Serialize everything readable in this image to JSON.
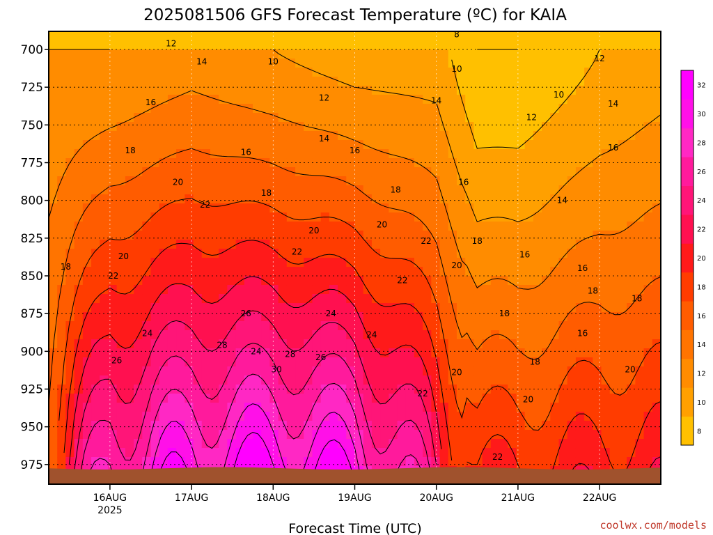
{
  "chart_data": {
    "type": "heatmap",
    "title": "2025081506 GFS Forecast Temperature (ºC) for KAIA",
    "xlabel": "Forecast Time (UTC)",
    "ylabel": "",
    "y_ticks": [
      "700",
      "725",
      "750",
      "775",
      "800",
      "825",
      "850",
      "875",
      "900",
      "925",
      "950",
      "975"
    ],
    "y_tick_values": [
      700,
      725,
      750,
      775,
      800,
      825,
      850,
      875,
      900,
      925,
      950,
      975
    ],
    "ylim": [
      688,
      988
    ],
    "y_inverted": true,
    "x_ticks": [
      {
        "label": "16AUG",
        "sublabel": "2025",
        "hour": 18
      },
      {
        "label": "17AUG",
        "sublabel": "",
        "hour": 42
      },
      {
        "label": "18AUG",
        "sublabel": "",
        "hour": 66
      },
      {
        "label": "19AUG",
        "sublabel": "",
        "hour": 90
      },
      {
        "label": "20AUG",
        "sublabel": "",
        "hour": 114
      },
      {
        "label": "21AUG",
        "sublabel": "",
        "hour": 138
      },
      {
        "label": "22AUG",
        "sublabel": "",
        "hour": 162
      }
    ],
    "xlim": [
      0,
      180
    ],
    "grid": true,
    "colorbar": {
      "levels": [
        8,
        10,
        12,
        14,
        16,
        18,
        20,
        22,
        24,
        26,
        28,
        30,
        32
      ],
      "labels": [
        "8",
        "10",
        "12",
        "14",
        "16",
        "18",
        "20",
        "22",
        "24",
        "26",
        "28",
        "30",
        "32"
      ],
      "colors": [
        "#ffc000",
        "#ffa000",
        "#ff8c00",
        "#ff7400",
        "#ff5c00",
        "#ff3c00",
        "#ff1a1a",
        "#ff1050",
        "#ff1578",
        "#ff1a9c",
        "#ff28c4",
        "#ff10e8",
        "#ff00ff"
      ],
      "placement": "right"
    },
    "temperature_profile_by_time": [
      {
        "hour": 0,
        "t700": 12,
        "t975": 19
      },
      {
        "hour": 18,
        "t700": 12,
        "t975": 28
      },
      {
        "hour": 42,
        "t700": 13,
        "t975": 31
      },
      {
        "hour": 66,
        "t700": 12,
        "t975": 32
      },
      {
        "hour": 90,
        "t700": 11,
        "t975": 31
      },
      {
        "hour": 114,
        "t700": 11,
        "t975": 24
      },
      {
        "hour": 126,
        "t700": 8,
        "t975": 20
      },
      {
        "hour": 138,
        "t700": 8,
        "t975": 20
      },
      {
        "hour": 162,
        "t700": 10,
        "t975": 21
      },
      {
        "hour": 180,
        "t700": 11,
        "t975": 21
      }
    ],
    "contour_labels": [
      {
        "text": "8",
        "hour": 120,
        "p": 690
      },
      {
        "text": "12",
        "hour": 36,
        "p": 696
      },
      {
        "text": "10",
        "hour": 66,
        "p": 708
      },
      {
        "text": "10",
        "hour": 120,
        "p": 713
      },
      {
        "text": "12",
        "hour": 162,
        "p": 706
      },
      {
        "text": "14",
        "hour": 45,
        "p": 708
      },
      {
        "text": "10",
        "hour": 150,
        "p": 730
      },
      {
        "text": "16",
        "hour": 30,
        "p": 735
      },
      {
        "text": "12",
        "hour": 81,
        "p": 732
      },
      {
        "text": "14",
        "hour": 114,
        "p": 734
      },
      {
        "text": "14",
        "hour": 166,
        "p": 736
      },
      {
        "text": "12",
        "hour": 142,
        "p": 745
      },
      {
        "text": "14",
        "hour": 81,
        "p": 759
      },
      {
        "text": "18",
        "hour": 24,
        "p": 767
      },
      {
        "text": "16",
        "hour": 58,
        "p": 768
      },
      {
        "text": "16",
        "hour": 90,
        "p": 767
      },
      {
        "text": "16",
        "hour": 166,
        "p": 765
      },
      {
        "text": "20",
        "hour": 38,
        "p": 788
      },
      {
        "text": "16",
        "hour": 122,
        "p": 788
      },
      {
        "text": "18",
        "hour": 64,
        "p": 795
      },
      {
        "text": "18",
        "hour": 102,
        "p": 793
      },
      {
        "text": "22",
        "hour": 46,
        "p": 803
      },
      {
        "text": "14",
        "hour": 151,
        "p": 800
      },
      {
        "text": "20",
        "hour": 78,
        "p": 820
      },
      {
        "text": "20",
        "hour": 98,
        "p": 816
      },
      {
        "text": "22",
        "hour": 111,
        "p": 827
      },
      {
        "text": "18",
        "hour": 126,
        "p": 827
      },
      {
        "text": "20",
        "hour": 22,
        "p": 837
      },
      {
        "text": "22",
        "hour": 73,
        "p": 834
      },
      {
        "text": "16",
        "hour": 140,
        "p": 836
      },
      {
        "text": "18",
        "hour": 5,
        "p": 844
      },
      {
        "text": "20",
        "hour": 120,
        "p": 843
      },
      {
        "text": "16",
        "hour": 157,
        "p": 845
      },
      {
        "text": "22",
        "hour": 19,
        "p": 850
      },
      {
        "text": "22",
        "hour": 104,
        "p": 853
      },
      {
        "text": "18",
        "hour": 160,
        "p": 860
      },
      {
        "text": "18",
        "hour": 173,
        "p": 865
      },
      {
        "text": "26",
        "hour": 58,
        "p": 875
      },
      {
        "text": "24",
        "hour": 83,
        "p": 875
      },
      {
        "text": "18",
        "hour": 134,
        "p": 875
      },
      {
        "text": "24",
        "hour": 29,
        "p": 888
      },
      {
        "text": "24",
        "hour": 95,
        "p": 889
      },
      {
        "text": "16",
        "hour": 157,
        "p": 888
      },
      {
        "text": "28",
        "hour": 51,
        "p": 896
      },
      {
        "text": "24",
        "hour": 61,
        "p": 900
      },
      {
        "text": "28",
        "hour": 71,
        "p": 902
      },
      {
        "text": "26",
        "hour": 80,
        "p": 904
      },
      {
        "text": "26",
        "hour": 20,
        "p": 906
      },
      {
        "text": "18",
        "hour": 143,
        "p": 907
      },
      {
        "text": "30",
        "hour": 67,
        "p": 912
      },
      {
        "text": "20",
        "hour": 171,
        "p": 912
      },
      {
        "text": "20",
        "hour": 120,
        "p": 914
      },
      {
        "text": "22",
        "hour": 110,
        "p": 928
      },
      {
        "text": "20",
        "hour": 141,
        "p": 932
      },
      {
        "text": "22",
        "hour": 132,
        "p": 970
      }
    ],
    "terrain_color": "#a0522d"
  },
  "credit": "coolwx.com/models"
}
